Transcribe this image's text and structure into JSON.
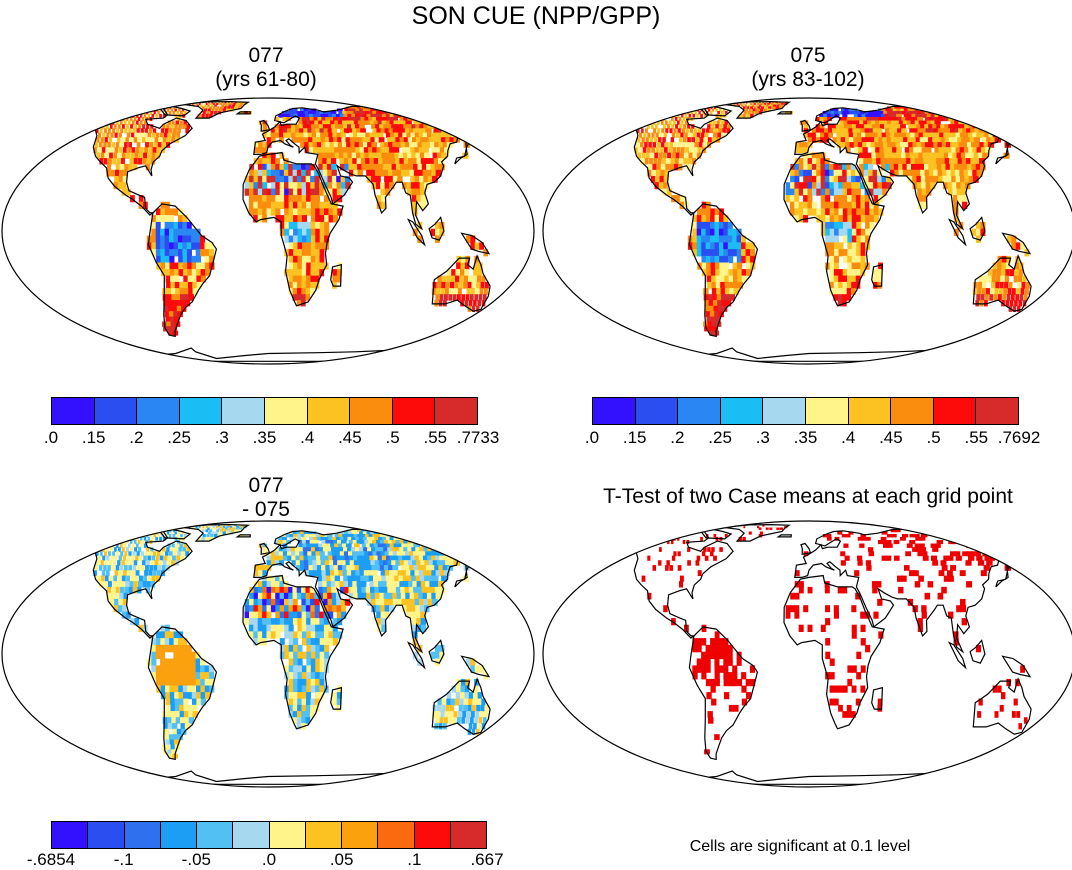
{
  "title": "SON CUE (NPP/GPP)",
  "panels": [
    {
      "id": "p077",
      "title_line1": "077",
      "title_line2": "(yrs 61-80)"
    },
    {
      "id": "p075",
      "title_line1": "075",
      "title_line2": "(yrs 83-102)"
    },
    {
      "id": "pdiff",
      "title_line1": "077",
      "title_line2": "- 075"
    },
    {
      "id": "pttest",
      "title_line1": "T-Test of two Case means at each grid point",
      "title_line2": ""
    }
  ],
  "colorbars": [
    {
      "id": "cbar-077",
      "colors": [
        "#3311ff",
        "#2b4ef0",
        "#2a86f2",
        "#1bbef4",
        "#a6d8ef",
        "#fff48a",
        "#fbc221",
        "#fb8d0e",
        "#fd0b0b",
        "#d72a2a"
      ],
      "labels": [
        ".0",
        ".15",
        ".2",
        ".25",
        ".3",
        ".35",
        ".4",
        ".45",
        ".5",
        ".55",
        ".7733"
      ]
    },
    {
      "id": "cbar-075",
      "colors": [
        "#3311ff",
        "#2b4ef0",
        "#2a86f2",
        "#1bbef4",
        "#a6d8ef",
        "#fff48a",
        "#fbc221",
        "#fb8d0e",
        "#fd0b0b",
        "#d72a2a"
      ],
      "labels": [
        ".0",
        ".15",
        ".2",
        ".25",
        ".3",
        ".35",
        ".4",
        ".45",
        ".5",
        ".55",
        ".7692"
      ]
    },
    {
      "id": "cbar-diff",
      "colors": [
        "#3311ff",
        "#2b4ef0",
        "#2f70ee",
        "#1b9ef4",
        "#52c0f2",
        "#a6d8ef",
        "#fff48a",
        "#fbc221",
        "#fba10e",
        "#fb6a0e",
        "#fd0b0b",
        "#d72a2a"
      ],
      "labels": [
        "-.6854",
        "-.1",
        "-.05",
        ".0",
        ".05",
        ".1",
        ".667"
      ]
    }
  ],
  "footnote": "Cells are significant at 0.1 level",
  "colors": {
    "significant": "#ee0000",
    "land_outline": "#000000",
    "background": "#ffffff"
  }
}
